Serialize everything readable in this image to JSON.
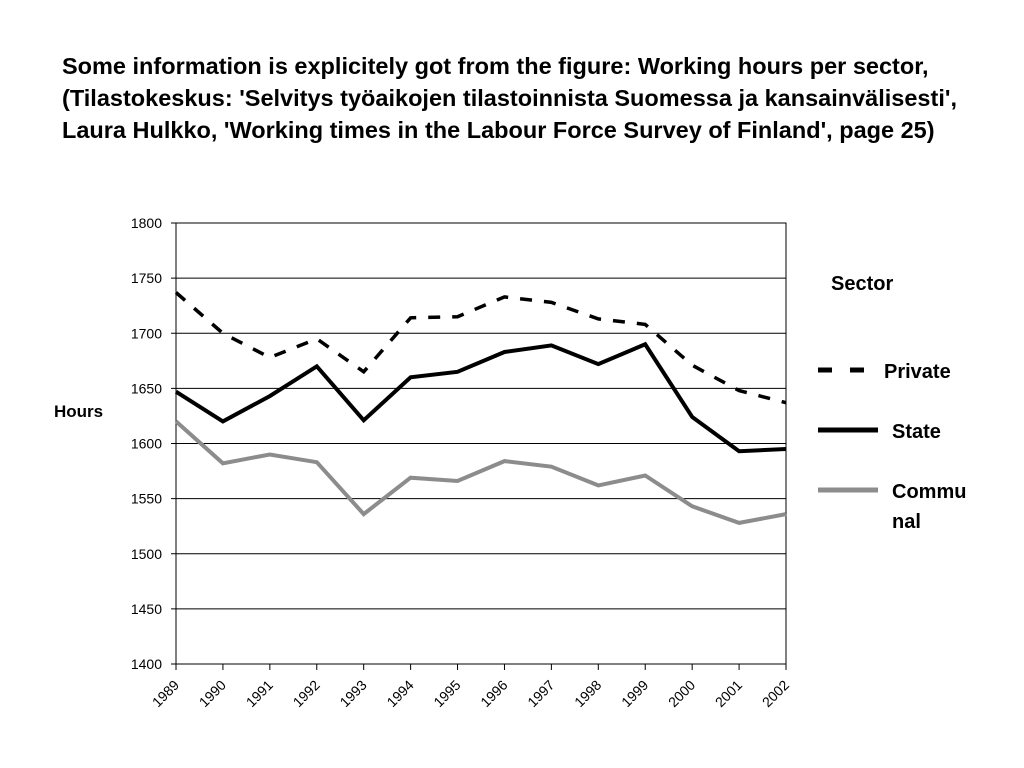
{
  "caption": "Some information is explicitely got from the figure: Working hours per sector, (Tilastokeskus: 'Selvitys työaikojen tilastoinnista Suomessa ja kansainvälisesti', Laura Hulkko, 'Working times in the Labour Force Survey of Finland', page 25)",
  "chart_data": {
    "type": "line",
    "ylabel": "Hours",
    "xlabel": "",
    "ylim": [
      1400,
      1800
    ],
    "yticks": [
      "1400",
      "1450",
      "1500",
      "1550",
      "1600",
      "1650",
      "1700",
      "1750",
      "1800"
    ],
    "x": [
      "1989",
      "1990",
      "1991",
      "1992",
      "1993",
      "1994",
      "1995",
      "1996",
      "1997",
      "1998",
      "1999",
      "2000",
      "2001",
      "2002"
    ],
    "grid": "horizontal",
    "legend": {
      "title": "Sector",
      "position": "right"
    },
    "series": [
      {
        "name": "Private",
        "line_label": [
          "Private"
        ],
        "style": "dashed",
        "color": "#000000",
        "values": [
          1737,
          1700,
          1678,
          1695,
          1665,
          1714,
          1715,
          1733,
          1728,
          1713,
          1708,
          1671,
          1648,
          1637
        ]
      },
      {
        "name": "State",
        "line_label": [
          "State"
        ],
        "style": "solid",
        "color": "#000000",
        "values": [
          1647,
          1620,
          1643,
          1670,
          1621,
          1660,
          1665,
          1683,
          1689,
          1672,
          1690,
          1624,
          1593,
          1595
        ]
      },
      {
        "name": "Communal",
        "line_label": [
          "Commu",
          "nal"
        ],
        "style": "solid",
        "color": "#8c8c8c",
        "values": [
          1620,
          1582,
          1590,
          1583,
          1536,
          1569,
          1566,
          1584,
          1579,
          1562,
          1571,
          1543,
          1528,
          1536
        ]
      }
    ]
  }
}
